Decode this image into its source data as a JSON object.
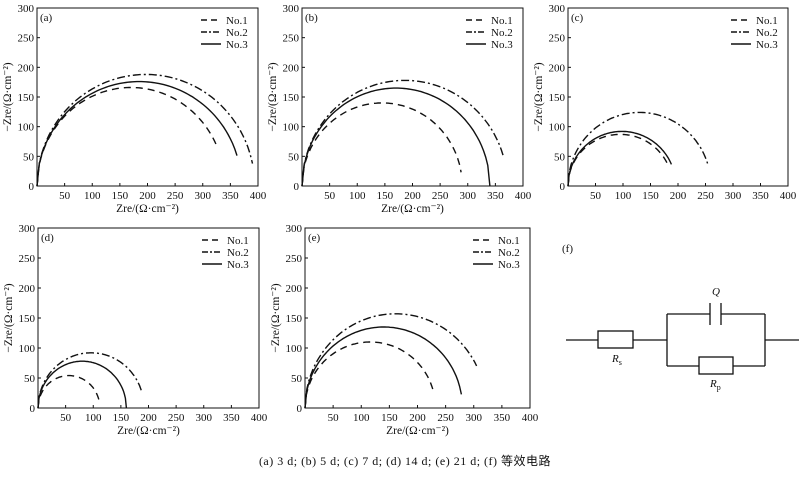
{
  "caption": "(a) 3 d; (b) 5 d; (c) 7 d; (d) 14 d; (e) 21 d; (f) 等效电路",
  "legend_labels": [
    "No.1",
    "No.2",
    "No.3"
  ],
  "circuit": {
    "panel_label": "(f)",
    "q_label": "Q",
    "rs_label": "R",
    "rs_sub": "s",
    "rp_label": "R",
    "rp_sub": "p"
  },
  "chart_data": [
    {
      "type": "line",
      "panel_label": "(a)",
      "xlabel": "Zre/(Ω·cm⁻²)",
      "ylabel": "−Zre/(Ω·cm⁻²)",
      "xlim": [
        0,
        400
      ],
      "ylim": [
        0,
        300
      ],
      "xticks": [
        50,
        100,
        150,
        200,
        250,
        300,
        350,
        400
      ],
      "yticks": [
        0,
        50,
        100,
        150,
        200,
        250,
        300
      ],
      "legend_position": "top-right",
      "series": [
        {
          "name": "No.1",
          "style": "dashed",
          "arc": {
            "x0": 0,
            "x1": 340,
            "peak_x": 170,
            "peak_y": 166
          },
          "x_end": 325
        },
        {
          "name": "No.2",
          "style": "dash-dot",
          "arc": {
            "x0": 0,
            "x1": 394,
            "peak_x": 197,
            "peak_y": 188
          },
          "x_end": 390
        },
        {
          "name": "No.3",
          "style": "solid",
          "arc": {
            "x0": 0,
            "x1": 370,
            "peak_x": 185,
            "peak_y": 176
          },
          "x_end": 362
        }
      ]
    },
    {
      "type": "line",
      "panel_label": "(b)",
      "xlabel": "Zre/(Ω·cm⁻²)",
      "ylabel": "−Zre/(Ω·cm⁻²)",
      "xlim": [
        0,
        400
      ],
      "ylim": [
        0,
        300
      ],
      "xticks": [
        50,
        100,
        150,
        200,
        250,
        300,
        350,
        400
      ],
      "yticks": [
        0,
        50,
        100,
        150,
        200,
        250,
        300
      ],
      "legend_position": "top-right",
      "series": [
        {
          "name": "No.1",
          "style": "dashed",
          "arc": {
            "x0": 0,
            "x1": 290,
            "peak_x": 145,
            "peak_y": 140
          },
          "x_end": 288
        },
        {
          "name": "No.2",
          "style": "dash-dot",
          "arc": {
            "x0": 0,
            "x1": 372,
            "peak_x": 186,
            "peak_y": 178
          },
          "x_end": 365
        },
        {
          "name": "No.3",
          "style": "solid",
          "arc": {
            "x0": 0,
            "x1": 340,
            "peak_x": 170,
            "peak_y": 165
          },
          "x_end": 340
        }
      ]
    },
    {
      "type": "line",
      "panel_label": "(c)",
      "xlabel": "",
      "ylabel": "−Zre/(Ω·cm⁻²)",
      "xlim": [
        0,
        400
      ],
      "ylim": [
        0,
        300
      ],
      "xticks": [
        50,
        100,
        150,
        200,
        250,
        300,
        350,
        400
      ],
      "yticks": [
        0,
        50,
        100,
        150,
        200,
        250,
        300
      ],
      "legend_position": "top-right",
      "series": [
        {
          "name": "No.1",
          "style": "dashed",
          "arc": {
            "x0": 0,
            "x1": 190,
            "peak_x": 95,
            "peak_y": 87
          },
          "x_end": 182
        },
        {
          "name": "No.2",
          "style": "dash-dot",
          "arc": {
            "x0": 0,
            "x1": 260,
            "peak_x": 130,
            "peak_y": 124
          },
          "x_end": 255
        },
        {
          "name": "No.3",
          "style": "solid",
          "arc": {
            "x0": 0,
            "x1": 196,
            "peak_x": 98,
            "peak_y": 92
          },
          "x_end": 188
        }
      ]
    },
    {
      "type": "line",
      "panel_label": "(d)",
      "xlabel": "Zre/(Ω·cm⁻²)",
      "ylabel": "−Zre/(Ω·cm⁻²)",
      "xlim": [
        0,
        400
      ],
      "ylim": [
        0,
        300
      ],
      "xticks": [
        50,
        100,
        150,
        200,
        250,
        300,
        350,
        400
      ],
      "yticks": [
        0,
        50,
        100,
        150,
        200,
        250,
        300
      ],
      "legend_position": "top-right",
      "series": [
        {
          "name": "No.1",
          "style": "dashed",
          "arc": {
            "x0": 0,
            "x1": 112,
            "peak_x": 56,
            "peak_y": 54
          },
          "x_end": 110
        },
        {
          "name": "No.2",
          "style": "dash-dot",
          "arc": {
            "x0": 0,
            "x1": 192,
            "peak_x": 96,
            "peak_y": 92
          },
          "x_end": 188
        },
        {
          "name": "No.3",
          "style": "solid",
          "arc": {
            "x0": 0,
            "x1": 160,
            "peak_x": 80,
            "peak_y": 78
          },
          "x_end": 160
        }
      ]
    },
    {
      "type": "line",
      "panel_label": "(e)",
      "xlabel": "Zre/(Ω·cm⁻²)",
      "ylabel": "−Zre/(Ω·cm⁻²)",
      "xlim": [
        0,
        400
      ],
      "ylim": [
        0,
        300
      ],
      "xticks": [
        50,
        100,
        150,
        200,
        250,
        300,
        350,
        400
      ],
      "yticks": [
        0,
        50,
        100,
        150,
        200,
        250,
        300
      ],
      "legend_position": "top-right",
      "series": [
        {
          "name": "No.1",
          "style": "dashed",
          "arc": {
            "x0": 0,
            "x1": 232,
            "peak_x": 116,
            "peak_y": 110
          },
          "x_end": 228
        },
        {
          "name": "No.2",
          "style": "dash-dot",
          "arc": {
            "x0": 0,
            "x1": 322,
            "peak_x": 161,
            "peak_y": 157
          },
          "x_end": 305
        },
        {
          "name": "No.3",
          "style": "solid",
          "arc": {
            "x0": 0,
            "x1": 280,
            "peak_x": 140,
            "peak_y": 135
          },
          "x_end": 278
        }
      ]
    }
  ]
}
